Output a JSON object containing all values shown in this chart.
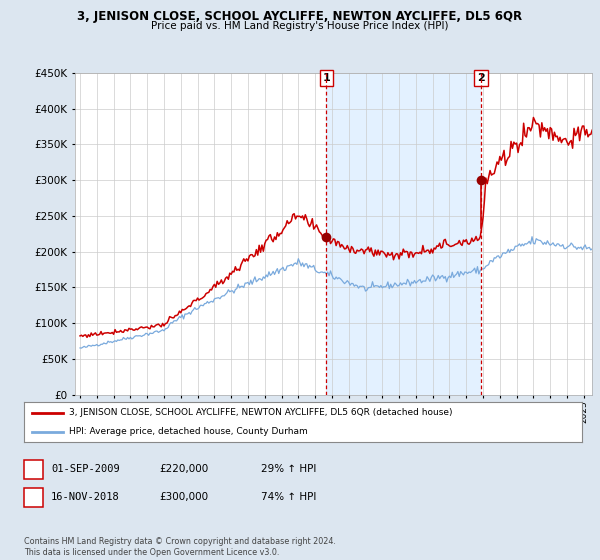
{
  "title": "3, JENISON CLOSE, SCHOOL AYCLIFFE, NEWTON AYCLIFFE, DL5 6QR",
  "subtitle": "Price paid vs. HM Land Registry's House Price Index (HPI)",
  "ylim": [
    0,
    450000
  ],
  "xlim_start": 1994.7,
  "xlim_end": 2025.5,
  "sale1_date": 2009.67,
  "sale1_price": 220000,
  "sale1_label": "1",
  "sale2_date": 2018.88,
  "sale2_price": 300000,
  "sale2_label": "2",
  "legend_red_label": "3, JENISON CLOSE, SCHOOL AYCLIFFE, NEWTON AYCLIFFE, DL5 6QR (detached house)",
  "legend_blue_label": "HPI: Average price, detached house, County Durham",
  "footnote": "Contains HM Land Registry data © Crown copyright and database right 2024.\nThis data is licensed under the Open Government Licence v3.0.",
  "red_color": "#cc0000",
  "blue_color": "#7aaadd",
  "shade_color": "#ddeeff",
  "vline_color": "#cc0000",
  "background_color": "#dce6f0",
  "plot_bg": "#ffffff",
  "grid_color": "#cccccc",
  "marker_color": "#990000"
}
